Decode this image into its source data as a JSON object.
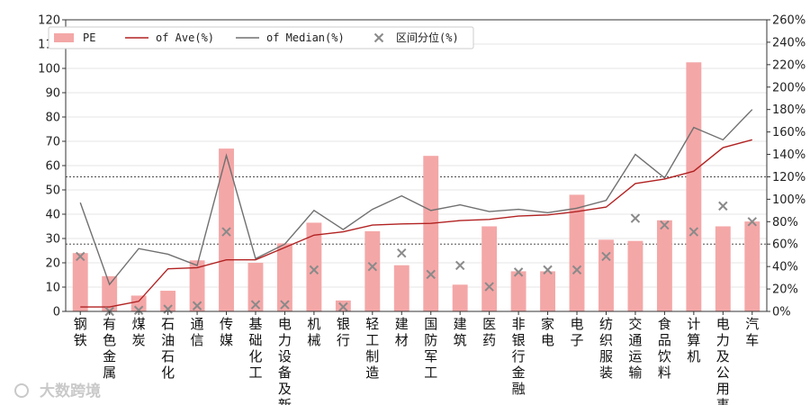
{
  "chart_data": {
    "type": "bar",
    "categories": [
      "钢铁",
      "有色金属",
      "煤炭",
      "石油石化",
      "通信",
      "传媒",
      "基础化工",
      "电力设备及新",
      "机械",
      "银行",
      "轻工制造",
      "建材",
      "国防军工",
      "建筑",
      "医药",
      "非银行金融",
      "家电",
      "电子",
      "纺织服装",
      "交通运输",
      "食品饮料",
      "计算机",
      "电力及公用事",
      "汽车"
    ],
    "series": [
      {
        "name": "PE",
        "kind": "bar",
        "axis": "left",
        "color": "#f4a7a7",
        "values": [
          24,
          14.5,
          6.5,
          8.5,
          21,
          67,
          20,
          28,
          36.5,
          4.5,
          33,
          19,
          64,
          11,
          35,
          16.5,
          16.5,
          48,
          29.5,
          29,
          37.5,
          102.5,
          35,
          37
        ]
      },
      {
        "name": "of Ave(%)",
        "kind": "line",
        "axis": "right",
        "color": "#b22222",
        "values": [
          4,
          4,
          9,
          38,
          39,
          46,
          46,
          57,
          68,
          71,
          77,
          78,
          78.5,
          81,
          82,
          85,
          86,
          89,
          93,
          114,
          118,
          125,
          146,
          153
        ]
      },
      {
        "name": "of Median(%)",
        "kind": "line",
        "axis": "right",
        "color": "#707070",
        "values": [
          97,
          24,
          56,
          51,
          41,
          139,
          47,
          60,
          90,
          73,
          91,
          103,
          90,
          95,
          89,
          91,
          88,
          92,
          99,
          140,
          119,
          164,
          153,
          180
        ]
      },
      {
        "name": "区间分位(%)",
        "kind": "scatter",
        "axis": "right",
        "color": "#8a8a8a",
        "values": [
          49,
          0,
          1,
          2,
          5,
          71,
          6,
          6,
          37,
          4,
          40,
          52,
          33,
          41,
          22,
          35,
          37,
          37,
          49,
          83,
          77,
          71,
          94,
          80
        ]
      }
    ],
    "y_left": {
      "min": 0,
      "max": 120,
      "ticks": [
        0,
        10,
        20,
        30,
        40,
        50,
        60,
        70,
        80,
        90,
        100,
        110,
        120
      ]
    },
    "y_right": {
      "min": 0,
      "max": 260,
      "ticks": [
        "0%",
        "20%",
        "40%",
        "60%",
        "80%",
        "100%",
        "120%",
        "140%",
        "160%",
        "180%",
        "200%",
        "220%",
        "240%",
        "260%"
      ]
    },
    "reference_lines_right": [
      60,
      120
    ],
    "legend": {
      "position": "top-left",
      "items": [
        "PE",
        "of Ave(%)",
        "of Median(%)",
        "区间分位(%)"
      ]
    },
    "watermark": "大数跨境",
    "grid": true
  }
}
